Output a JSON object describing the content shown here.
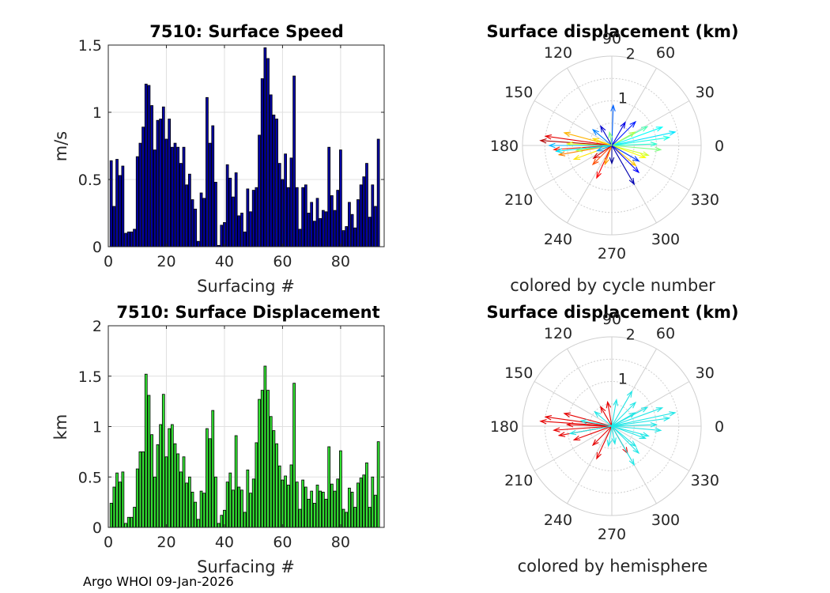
{
  "footer": "Argo WHOI 09-Jan-2026",
  "chart_data": [
    {
      "type": "bar",
      "title": "7510: Surface Speed",
      "xlabel": "Surfacing #",
      "ylabel": "m/s",
      "xlim": [
        0,
        95
      ],
      "ylim": [
        0,
        1.5
      ],
      "xticks": [
        "0",
        "20",
        "40",
        "60",
        "80"
      ],
      "yticks": [
        "0",
        "0.5",
        "1",
        "1.5"
      ],
      "bar_color": "#0000a8",
      "values": [
        0.64,
        0.3,
        0.65,
        0.53,
        0.6,
        0.1,
        0.11,
        0.11,
        0.13,
        0.67,
        0.77,
        0.89,
        1.21,
        1.2,
        1.05,
        0.72,
        0.94,
        0.95,
        1.04,
        0.8,
        0.95,
        0.74,
        0.77,
        0.74,
        0.62,
        0.74,
        0.46,
        0.54,
        0.35,
        0.28,
        0.04,
        0.4,
        0.36,
        1.11,
        0.77,
        0.9,
        0.48,
        0.01,
        0.16,
        0.18,
        0.61,
        0.51,
        0.37,
        0.55,
        0.23,
        0.25,
        0.11,
        0.43,
        0.26,
        0.42,
        0.44,
        0.83,
        1.25,
        1.48,
        1.4,
        1.13,
        0.98,
        0.95,
        0.62,
        0.5,
        0.69,
        0.44,
        0.66,
        1.27,
        0.44,
        0.13,
        0.44,
        0.46,
        0.25,
        0.33,
        0.19,
        0.36,
        0.21,
        0.27,
        0.26,
        0.74,
        0.38,
        0.27,
        0.42,
        0.72,
        0.12,
        0.15,
        0.33,
        0.24,
        0.14,
        0.35,
        0.46,
        0.52,
        0.62,
        0.22,
        0.46,
        0.3,
        0.8
      ],
      "coloring_text": "",
      "polar": false
    },
    {
      "type": "bar",
      "title": "7510: Surface Displacement",
      "xlabel": "Surfacing #",
      "ylabel": "km",
      "xlim": [
        0,
        95
      ],
      "ylim": [
        0,
        2
      ],
      "xticks": [
        "0",
        "20",
        "40",
        "60",
        "80"
      ],
      "yticks": [
        "0",
        "0.5",
        "1",
        "1.5",
        "2"
      ],
      "bar_color": "#33e633",
      "values": [
        0.24,
        0.4,
        0.54,
        0.45,
        0.55,
        0.04,
        0.1,
        0.1,
        0.2,
        0.58,
        0.75,
        0.75,
        1.52,
        1.31,
        0.92,
        0.5,
        0.82,
        1.02,
        1.32,
        0.7,
        0.98,
        1.02,
        0.83,
        0.73,
        0.55,
        0.7,
        0.44,
        0.5,
        0.35,
        0.25,
        0.08,
        0.36,
        0.34,
        0.98,
        0.88,
        1.16,
        0.5,
        0.04,
        0.12,
        0.17,
        0.45,
        0.54,
        0.37,
        0.91,
        0.4,
        0.37,
        0.15,
        0.57,
        0.34,
        0.48,
        0.84,
        1.27,
        1.36,
        1.6,
        1.36,
        1.1,
        0.96,
        0.83,
        0.61,
        0.47,
        0.51,
        0.42,
        0.62,
        1.43,
        0.45,
        0.18,
        0.47,
        0.4,
        0.28,
        0.36,
        0.24,
        0.42,
        0.36,
        0.35,
        0.28,
        0.8,
        0.43,
        0.36,
        0.48,
        0.76,
        0.18,
        0.15,
        0.39,
        0.35,
        0.2,
        0.44,
        0.49,
        0.52,
        0.64,
        0.2,
        0.5,
        0.32,
        0.85
      ],
      "coloring_text": "",
      "polar": false
    },
    {
      "type": "polar_vectors",
      "title": "Surface displacement (km)",
      "caption": "colored by cycle number",
      "rlim": [
        0,
        2
      ],
      "radial_ticks": [
        "1",
        "2"
      ],
      "angle_ticks": [
        "0",
        "30",
        "60",
        "90",
        "120",
        "150",
        "180",
        "210",
        "240",
        "270",
        "300",
        "330"
      ],
      "colormap": "jet",
      "vectors": [
        {
          "r": 1.6,
          "theta": 176,
          "c": 0.95
        },
        {
          "r": 1.3,
          "theta": 184,
          "c": 0.85
        },
        {
          "r": 1.5,
          "theta": 172,
          "c": 0.9
        },
        {
          "r": 1.2,
          "theta": 190,
          "c": 0.75
        },
        {
          "r": 1.1,
          "theta": 165,
          "c": 0.7
        },
        {
          "r": 0.9,
          "theta": 200,
          "c": 0.65
        },
        {
          "r": 1.0,
          "theta": 178,
          "c": 0.6
        },
        {
          "r": 0.8,
          "theta": 188,
          "c": 0.55
        },
        {
          "r": 1.4,
          "theta": 180,
          "c": 0.3
        },
        {
          "r": 1.25,
          "theta": 186,
          "c": 0.35
        },
        {
          "r": 1.3,
          "theta": 8,
          "c": 0.4
        },
        {
          "r": 1.45,
          "theta": 12,
          "c": 0.35
        },
        {
          "r": 1.2,
          "theta": 20,
          "c": 0.38
        },
        {
          "r": 1.0,
          "theta": 2,
          "c": 0.42
        },
        {
          "r": 0.9,
          "theta": 28,
          "c": 0.45
        },
        {
          "r": 1.1,
          "theta": 355,
          "c": 0.5
        },
        {
          "r": 0.8,
          "theta": 340,
          "c": 0.62
        },
        {
          "r": 0.7,
          "theta": 320,
          "c": 0.68
        },
        {
          "r": 0.85,
          "theta": 345,
          "c": 0.58
        },
        {
          "r": 0.6,
          "theta": 30,
          "c": 0.55
        },
        {
          "r": 1.0,
          "theta": 300,
          "c": 0.05
        },
        {
          "r": 0.85,
          "theta": 315,
          "c": 0.12
        },
        {
          "r": 0.7,
          "theta": 330,
          "c": 0.18
        },
        {
          "r": 0.75,
          "theta": 45,
          "c": 0.15
        },
        {
          "r": 0.9,
          "theta": 88,
          "c": 0.22
        },
        {
          "r": 0.6,
          "theta": 60,
          "c": 0.1
        },
        {
          "r": 0.5,
          "theta": 120,
          "c": 0.08
        },
        {
          "r": 0.55,
          "theta": 140,
          "c": 0.25
        },
        {
          "r": 0.8,
          "theta": 245,
          "c": 0.88
        },
        {
          "r": 0.6,
          "theta": 225,
          "c": 0.8
        },
        {
          "r": 0.45,
          "theta": 250,
          "c": 0.72
        },
        {
          "r": 0.5,
          "theta": 215,
          "c": 0.92
        },
        {
          "r": 0.4,
          "theta": 270,
          "c": 0.02
        },
        {
          "r": 0.35,
          "theta": 200,
          "c": 0.28
        },
        {
          "r": 0.45,
          "theta": 160,
          "c": 0.66
        },
        {
          "r": 0.3,
          "theta": 100,
          "c": 0.5
        }
      ],
      "polar": true
    },
    {
      "type": "polar_vectors",
      "title": "Surface displacement (km)",
      "caption": "colored by hemisphere",
      "rlim": [
        0,
        2
      ],
      "radial_ticks": [
        "1",
        "2"
      ],
      "angle_ticks": [
        "0",
        "30",
        "60",
        "90",
        "120",
        "150",
        "180",
        "210",
        "240",
        "270",
        "300",
        "330"
      ],
      "colormap": "hemisphere",
      "vectors": [
        {
          "r": 1.6,
          "theta": 176,
          "c": 1
        },
        {
          "r": 1.3,
          "theta": 184,
          "c": 1
        },
        {
          "r": 1.5,
          "theta": 172,
          "c": 1
        },
        {
          "r": 1.2,
          "theta": 190,
          "c": 1
        },
        {
          "r": 1.1,
          "theta": 165,
          "c": 1
        },
        {
          "r": 0.9,
          "theta": 200,
          "c": 1
        },
        {
          "r": 1.0,
          "theta": 178,
          "c": 1
        },
        {
          "r": 0.8,
          "theta": 245,
          "c": 1
        },
        {
          "r": 0.6,
          "theta": 225,
          "c": 1
        },
        {
          "r": 0.5,
          "theta": 120,
          "c": 1
        },
        {
          "r": 0.55,
          "theta": 100,
          "c": 1
        },
        {
          "r": 0.7,
          "theta": 300,
          "c": 1
        },
        {
          "r": 1.3,
          "theta": 8,
          "c": 0
        },
        {
          "r": 1.45,
          "theta": 12,
          "c": 0
        },
        {
          "r": 1.2,
          "theta": 20,
          "c": 0
        },
        {
          "r": 1.0,
          "theta": 2,
          "c": 0
        },
        {
          "r": 0.9,
          "theta": 28,
          "c": 0
        },
        {
          "r": 1.1,
          "theta": 355,
          "c": 0
        },
        {
          "r": 0.8,
          "theta": 340,
          "c": 0
        },
        {
          "r": 0.7,
          "theta": 320,
          "c": 0
        },
        {
          "r": 0.85,
          "theta": 345,
          "c": 0
        },
        {
          "r": 0.6,
          "theta": 30,
          "c": 0
        },
        {
          "r": 1.0,
          "theta": 300,
          "c": 0
        },
        {
          "r": 0.85,
          "theta": 315,
          "c": 0
        },
        {
          "r": 0.75,
          "theta": 45,
          "c": 0
        },
        {
          "r": 0.9,
          "theta": 60,
          "c": 0
        },
        {
          "r": 0.6,
          "theta": 80,
          "c": 0
        },
        {
          "r": 0.5,
          "theta": 140,
          "c": 0
        },
        {
          "r": 0.45,
          "theta": 260,
          "c": 0
        },
        {
          "r": 0.4,
          "theta": 280,
          "c": 0
        },
        {
          "r": 0.95,
          "theta": 190,
          "c": 0
        },
        {
          "r": 0.7,
          "theta": 170,
          "c": 0
        }
      ],
      "polar": true
    }
  ]
}
